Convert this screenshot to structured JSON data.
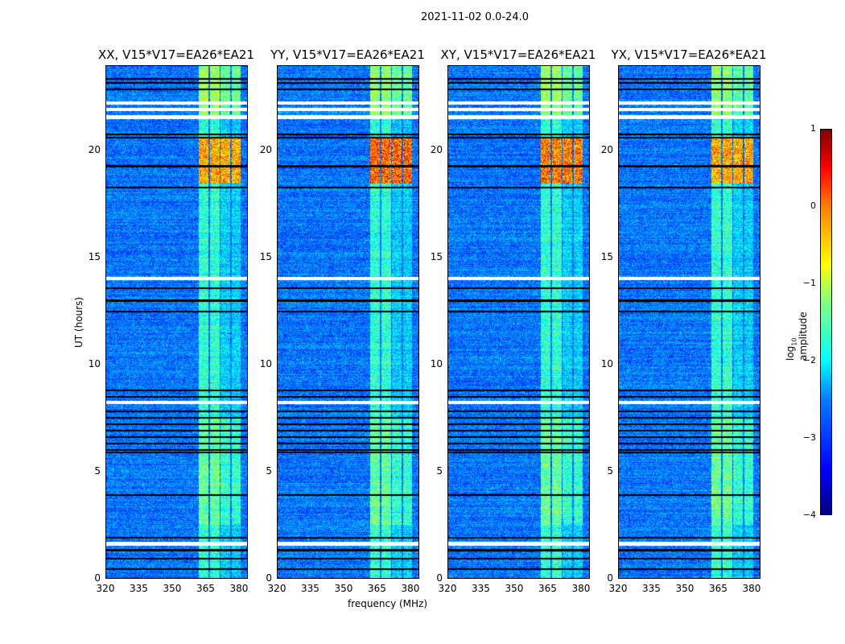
{
  "chart_data": {
    "type": "heatmap",
    "title": "2021-11-02 0.0-24.0",
    "xlabel": "frequency (MHz)",
    "ylabel": "UT (hours)",
    "xlim": [
      320,
      384
    ],
    "ylim": [
      0,
      24
    ],
    "xticks": [
      "320",
      "335",
      "350",
      "365",
      "380"
    ],
    "xtick_values": [
      320,
      335,
      350,
      365,
      380
    ],
    "yticks": [
      "0",
      "5",
      "10",
      "15",
      "20"
    ],
    "ytick_values": [
      0,
      5,
      10,
      15,
      20
    ],
    "panels": [
      {
        "title": "XX, V15*V17=EA26*EA21",
        "strength": 0.0
      },
      {
        "title": "YY, V15*V17=EA26*EA21",
        "strength": 0.4
      },
      {
        "title": "XY, V15*V17=EA26*EA21",
        "strength": 0.3
      },
      {
        "title": "YX, V15*V17=EA26*EA21",
        "strength": 0.0
      }
    ],
    "rfi_bands_mhz": [
      [
        362,
        366.5
      ],
      [
        367,
        371.5
      ],
      [
        372,
        376.5
      ],
      [
        377,
        381
      ]
    ],
    "strong_rfi_hours": [
      18.5,
      20.6
    ],
    "blank_hours": [
      [
        22.2,
        22.35
      ],
      [
        21.9,
        22.05
      ],
      [
        21.5,
        21.7
      ],
      [
        13.95,
        14.1
      ],
      [
        8.15,
        8.3
      ],
      [
        1.5,
        1.7
      ]
    ],
    "flag_lines_hours": [
      23.4,
      23.2,
      22.9,
      20.8,
      20.65,
      19.3,
      18.3,
      13.6,
      13.0,
      12.5,
      8.8,
      8.5,
      7.8,
      7.5,
      7.2,
      6.9,
      6.6,
      6.3,
      6.0,
      5.9,
      3.9,
      1.9,
      1.3,
      0.9,
      0.4
    ],
    "colorbar": {
      "label": "log10 amplitude",
      "range": [
        -4,
        1
      ],
      "ticks": [
        "1",
        "0",
        "−1",
        "−2",
        "−3",
        "−4"
      ],
      "tick_values": [
        1,
        0,
        -1,
        -2,
        -3,
        -4
      ],
      "colormap": "jet"
    }
  }
}
